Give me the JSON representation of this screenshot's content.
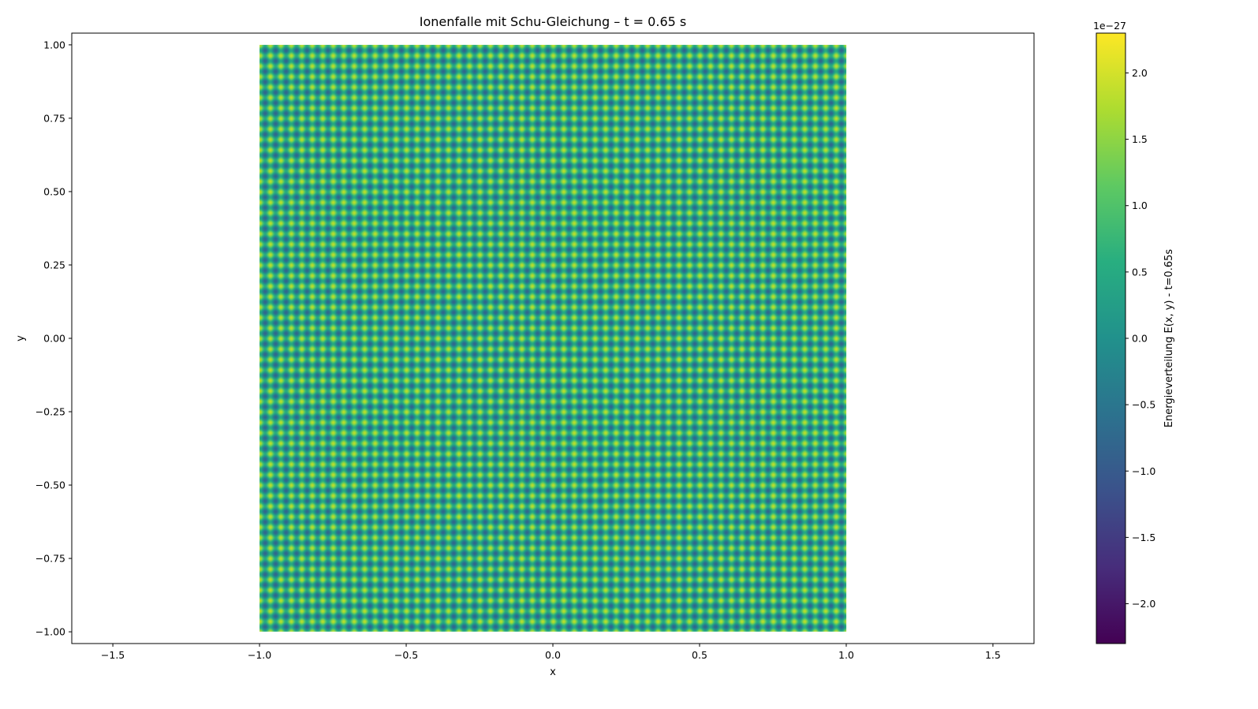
{
  "chart_data": {
    "type": "heatmap",
    "title": "Ionenfalle mit Schu-Gleichung – t = 0.65 s",
    "xlabel": "x",
    "ylabel": "y",
    "xlim": [
      -1.64,
      1.64
    ],
    "ylim": [
      -1.04,
      1.04
    ],
    "x_ticks": [
      -1.5,
      -1.0,
      -0.5,
      0.0,
      0.5,
      1.0,
      1.5
    ],
    "x_tick_labels": [
      "−1.5",
      "−1.0",
      "−0.5",
      "0.0",
      "0.5",
      "1.0",
      "1.5"
    ],
    "y_ticks": [
      1.0,
      0.75,
      0.5,
      0.25,
      0.0,
      -0.25,
      -0.5,
      -0.75,
      -1.0
    ],
    "y_tick_labels": [
      "1.00",
      "0.75",
      "0.50",
      "0.25",
      "0.00",
      "−0.25",
      "−0.50",
      "−0.75",
      "−1.00"
    ],
    "data_extent": {
      "x": [
        -1.0,
        1.0
      ],
      "y": [
        -1.0,
        1.0
      ]
    },
    "pattern": {
      "periods_x": 56,
      "periods_y": 56
    },
    "colormap": "viridis",
    "colorbar": {
      "label": "Energieverteilung E(x, y) - t=0.65s",
      "offset_text": "1e−27",
      "range": [
        -2.3,
        2.3
      ],
      "ticks": [
        2.0,
        1.5,
        1.0,
        0.5,
        0.0,
        -0.5,
        -1.0,
        -1.5,
        -2.0
      ],
      "tick_labels": [
        "2.0",
        "1.5",
        "1.0",
        "0.5",
        "0.0",
        "−0.5",
        "−1.0",
        "−1.5",
        "−2.0"
      ]
    },
    "grid": false
  }
}
